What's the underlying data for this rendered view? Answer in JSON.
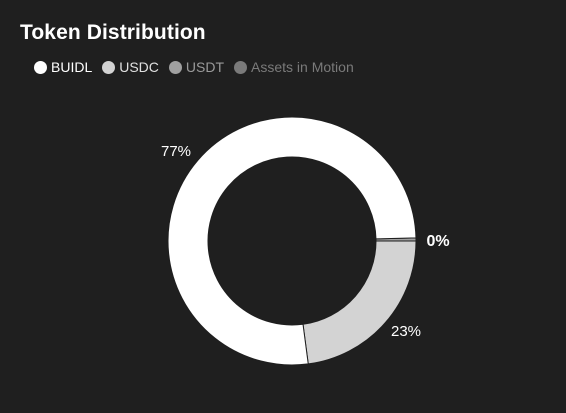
{
  "header": {
    "title": "Token Distribution"
  },
  "chart_data": {
    "type": "pie",
    "style": "donut",
    "title": "Token Distribution",
    "categories": [
      "BUIDL",
      "USDC",
      "USDT",
      "Assets in Motion"
    ],
    "values": [
      77,
      23,
      0.4,
      0
    ],
    "labels": [
      "77%",
      "23%",
      "0%",
      ""
    ],
    "colors": [
      "#ffffff",
      "#d3d3d3",
      "#a0a0a0",
      "#7a7a7a"
    ],
    "legend_label_colors": [
      "#ffffff",
      "#e0e0e0",
      "#9a9a9a",
      "#7a7a7a"
    ],
    "legend": "top-left"
  }
}
